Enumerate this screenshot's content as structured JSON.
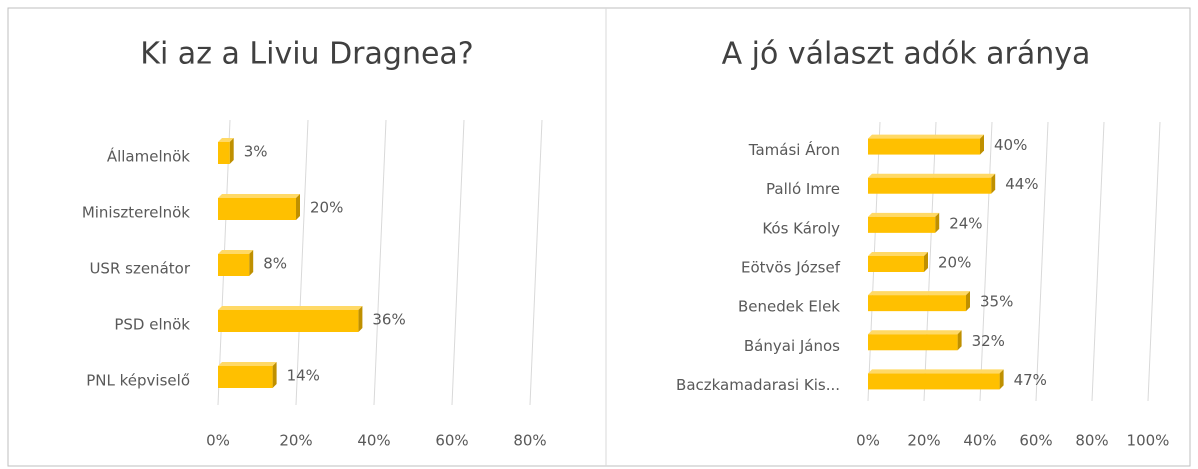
{
  "chart_data": [
    {
      "type": "bar",
      "title": "Ki az a Liviu Dragnea?",
      "categories": [
        "Államelnök",
        "Miniszterelnök",
        "USR szenátor",
        "PSD elnök",
        "PNL képviselő"
      ],
      "values": [
        3,
        20,
        8,
        36,
        14
      ],
      "value_labels": [
        "3%",
        "20%",
        "8%",
        "36%",
        "14%"
      ],
      "color": "#ffc000",
      "xlim": [
        0,
        80
      ],
      "xticks": [
        {
          "value": 0,
          "label": "0%"
        },
        {
          "value": 20,
          "label": "20%"
        },
        {
          "value": 40,
          "label": "40%"
        },
        {
          "value": 60,
          "label": "60%"
        },
        {
          "value": 80,
          "label": "80%"
        }
      ],
      "grid": true
    },
    {
      "type": "bar",
      "title": "A jó választ adók aránya",
      "categories": [
        "Tamási Áron",
        "Palló Imre",
        "Kós Károly",
        "Eötvös József",
        "Benedek Elek",
        "Bányai János",
        "Baczkamadarasi Kis..."
      ],
      "values": [
        40,
        44,
        24,
        20,
        35,
        32,
        47
      ],
      "value_labels": [
        "40%",
        "44%",
        "24%",
        "20%",
        "35%",
        "32%",
        "47%"
      ],
      "color": "#ffc000",
      "xlim": [
        0,
        100
      ],
      "xticks": [
        {
          "value": 0,
          "label": "0%"
        },
        {
          "value": 20,
          "label": "20%"
        },
        {
          "value": 40,
          "label": "40%"
        },
        {
          "value": 60,
          "label": "60%"
        },
        {
          "value": 80,
          "label": "80%"
        },
        {
          "value": 100,
          "label": "100%"
        }
      ],
      "grid": true
    }
  ]
}
